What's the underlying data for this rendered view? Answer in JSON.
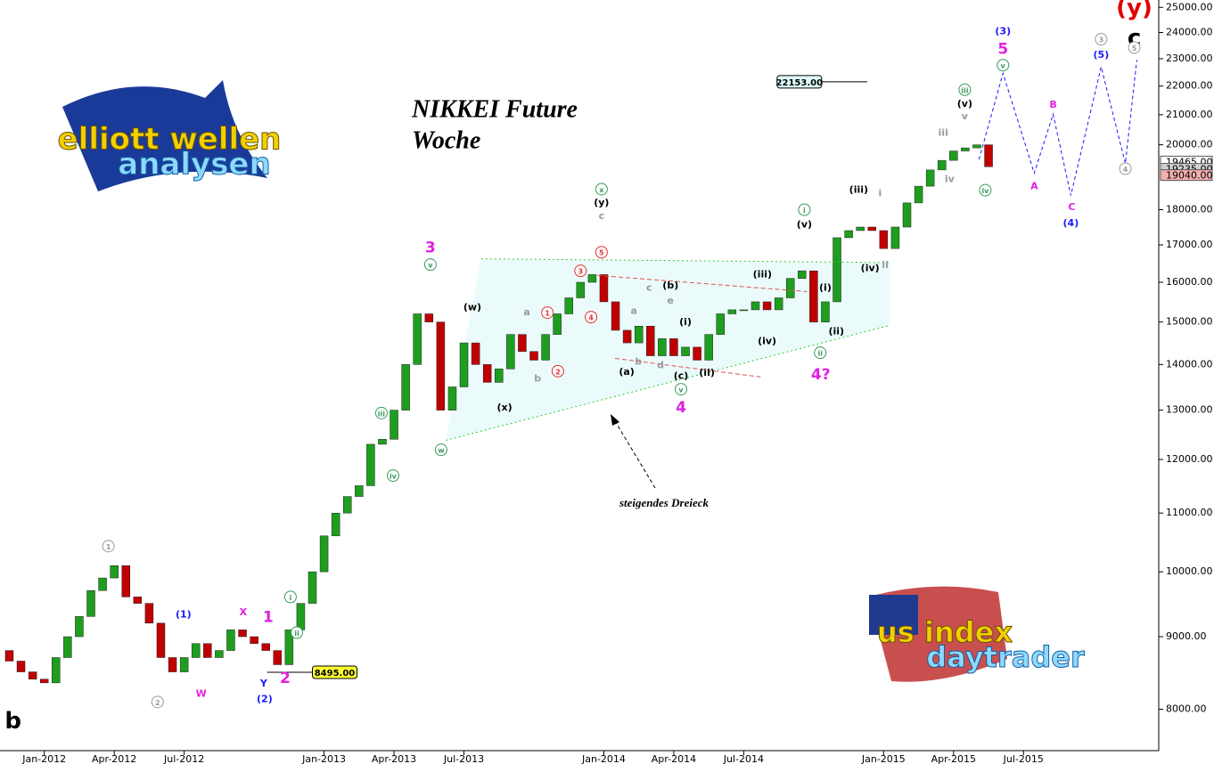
{
  "chart_data": {
    "type": "candlestick",
    "title": "NIKKEI Future",
    "subtitle": "Woche",
    "x": [
      -1.5,
      -1,
      -0.5,
      0,
      0.5,
      1,
      1.5,
      2,
      2.5,
      3,
      3.5,
      4,
      4.5,
      5,
      5.5,
      6,
      6.5,
      7,
      7.5,
      8,
      8.5,
      9,
      9.5,
      10,
      10.5,
      11,
      11.5,
      12,
      12.5,
      13,
      13.5,
      14,
      14.5,
      15,
      15.5,
      16,
      16.5,
      17,
      17.5,
      18,
      18.5,
      19,
      19.5,
      20,
      20.5,
      21,
      21.5,
      22,
      22.5,
      23,
      23.5,
      24,
      24.5,
      25,
      25.5,
      26,
      26.5,
      27,
      27.5,
      28,
      28.5,
      29,
      29.5,
      30,
      30.5,
      31,
      31.5,
      32,
      32.5,
      33,
      33.5,
      34,
      34.5,
      35,
      35.5,
      36,
      36.5,
      37,
      37.5,
      38,
      38.5,
      39,
      39.5,
      40,
      40.5
    ],
    "open": [
      8800,
      8650,
      8500,
      8400,
      8350,
      8700,
      9000,
      9300,
      9700,
      9900,
      10100,
      9600,
      9500,
      9200,
      8700,
      8500,
      8700,
      8900,
      8700,
      8800,
      9100,
      9000,
      8900,
      8800,
      8600,
      9100,
      9500,
      10000,
      10600,
      11000,
      11300,
      11500,
      12300,
      12400,
      13000,
      14000,
      15200,
      15000,
      13000,
      13500,
      14500,
      14000,
      13600,
      13900,
      14700,
      14300,
      14100,
      14700,
      15200,
      15600,
      16000,
      16200,
      15500,
      14800,
      14500,
      14900,
      14200,
      14600,
      14200,
      14400,
      14100,
      14700,
      15200,
      15300,
      15300,
      15500,
      15300,
      15600,
      16100,
      16300,
      15000,
      15500,
      17200,
      17400,
      17500,
      17400,
      16900,
      17500,
      18200,
      18700,
      19200,
      19500,
      19800,
      19900,
      20000
    ],
    "close": [
      8650,
      8500,
      8400,
      8350,
      8700,
      9000,
      9300,
      9700,
      9900,
      10100,
      9600,
      9500,
      9200,
      8700,
      8500,
      8700,
      8900,
      8700,
      8800,
      9100,
      9000,
      8900,
      8800,
      8600,
      9100,
      9500,
      10000,
      10600,
      11000,
      11300,
      11500,
      12300,
      12400,
      13000,
      14000,
      15200,
      15000,
      13000,
      13500,
      14500,
      14000,
      13600,
      13900,
      14700,
      14300,
      14100,
      14700,
      15200,
      15600,
      16000,
      16200,
      15500,
      14800,
      14500,
      14900,
      14200,
      14600,
      14200,
      14400,
      14100,
      14700,
      15200,
      15300,
      15300,
      15500,
      15300,
      15600,
      16100,
      16300,
      15000,
      15500,
      17200,
      17400,
      17500,
      17400,
      16900,
      17500,
      18200,
      18700,
      19200,
      19500,
      19800,
      19900,
      20000,
      19300
    ],
    "up_color": "#1e9e1e",
    "down_color": "#c00000",
    "xlim": [
      -1.9,
      47.8
    ],
    "ylim": [
      7480,
      25300
    ],
    "log_scale": true,
    "xticks": [
      {
        "value": 0,
        "label": "Jan-2012"
      },
      {
        "value": 3,
        "label": "Apr-2012"
      },
      {
        "value": 6,
        "label": "Jul-2012"
      },
      {
        "value": 12,
        "label": "Jan-2013"
      },
      {
        "value": 15,
        "label": "Apr-2013"
      },
      {
        "value": 18,
        "label": "Jul-2013"
      },
      {
        "value": 24,
        "label": "Jan-2014"
      },
      {
        "value": 27,
        "label": "Apr-2014"
      },
      {
        "value": 30,
        "label": "Jul-2014"
      },
      {
        "value": 36,
        "label": "Jan-2015"
      },
      {
        "value": 39,
        "label": "Apr-2015"
      },
      {
        "value": 42,
        "label": "Jul-2015"
      }
    ],
    "yticks": [
      {
        "value": 8000,
        "label": "8000.00"
      },
      {
        "value": 9000,
        "label": "9000.00"
      },
      {
        "value": 10000,
        "label": "10000.00"
      },
      {
        "value": 11000,
        "label": "11000.00"
      },
      {
        "value": 12000,
        "label": "12000.00"
      },
      {
        "value": 13000,
        "label": "13000.00"
      },
      {
        "value": 14000,
        "label": "14000.00"
      },
      {
        "value": 15000,
        "label": "15000.00"
      },
      {
        "value": 16000,
        "label": "16000.00"
      },
      {
        "value": 17000,
        "label": "17000.00"
      },
      {
        "value": 18000,
        "label": "18000.00"
      },
      {
        "value": 20000,
        "label": "20000.00"
      },
      {
        "value": 21000,
        "label": "21000.00"
      },
      {
        "value": 22000,
        "label": "22000.00"
      },
      {
        "value": 23000,
        "label": "23000.00"
      },
      {
        "value": 24000,
        "label": "24000.00"
      },
      {
        "value": 25000,
        "label": "25000.00"
      }
    ],
    "projection": {
      "color": "#1a1aff",
      "x": [
        40.09,
        41.12,
        42.46,
        43.27,
        44.03,
        45.33,
        46.37,
        46.86
      ],
      "values": [
        19530,
        22460,
        19100,
        21020,
        18420,
        22700,
        19400,
        22960
      ]
    },
    "trend_lines": [
      {
        "color": "#33cc33",
        "x": [
          18.74,
          36.27
        ],
        "values": [
          16620,
          16520
        ]
      },
      {
        "color": "#33cc33",
        "x": [
          17.22,
          36.27
        ],
        "values": [
          12380,
          14920
        ]
      },
      {
        "color": "#e05050",
        "x": [
          23.72,
          32.71
        ],
        "values": [
          16180,
          15760
        ]
      },
      {
        "color": "#e05050",
        "x": [
          24.48,
          30.72
        ],
        "values": [
          14140,
          13720
        ]
      }
    ],
    "triangle_fill": "#e6fafa",
    "levels": [
      {
        "value": 22153,
        "label": "22153.00",
        "x": [
          32.5,
          35.3
        ],
        "color": "#e0ffff"
      },
      {
        "value": 8495,
        "label": "8495.00",
        "x": [
          9.56,
          11.5
        ],
        "color": "#ffff33"
      }
    ],
    "price_tags": [
      {
        "value": 19465,
        "label": "19465.00",
        "color": "#ffffff"
      },
      {
        "value": 19235,
        "label": "19235.00",
        "color": "#d0d0d0"
      },
      {
        "value": 19040,
        "label": "19040.00",
        "color": "#f4b0b0"
      }
    ],
    "annotation": "steigendes Dreieck",
    "wave_labels": [
      {
        "text": "b",
        "x": -1.34,
        "y": 7850,
        "color": "#000000",
        "style": "big"
      },
      {
        "text": "1",
        "x": 2.75,
        "y": 10425,
        "color": "#999999",
        "circle": true
      },
      {
        "text": "2",
        "x": 4.86,
        "y": 8095,
        "color": "#999999",
        "circle": true
      },
      {
        "text": "(1)",
        "x": 5.97,
        "y": 9335,
        "color": "#1a1aff"
      },
      {
        "text": "W",
        "x": 6.73,
        "y": 8213,
        "color": "#e020e0"
      },
      {
        "text": "X",
        "x": 8.53,
        "y": 9370,
        "color": "#e020e0"
      },
      {
        "text": "1",
        "x": 9.6,
        "y": 9300,
        "color": "#e020e0",
        "style": "mid"
      },
      {
        "text": "Y",
        "x": 9.41,
        "y": 8350,
        "color": "#1a1aff"
      },
      {
        "text": "2",
        "x": 10.33,
        "y": 8420,
        "color": "#e020e0",
        "style": "mid"
      },
      {
        "text": "(2)",
        "x": 9.45,
        "y": 8140,
        "color": "#1a1aff"
      },
      {
        "text": "i",
        "x": 10.56,
        "y": 9600,
        "color": "#3a9a5a",
        "circle": true
      },
      {
        "text": "ii",
        "x": 10.83,
        "y": 9060,
        "color": "#3a9a5a",
        "circle": true
      },
      {
        "text": "iii",
        "x": 14.46,
        "y": 12940,
        "color": "#3a9a5a",
        "circle": true
      },
      {
        "text": "iv",
        "x": 14.96,
        "y": 11690,
        "color": "#3a9a5a",
        "circle": true
      },
      {
        "text": "3",
        "x": 16.56,
        "y": 16940,
        "color": "#e020e0",
        "style": "mid"
      },
      {
        "text": "v",
        "x": 16.56,
        "y": 16465,
        "color": "#3a9a5a",
        "circle": true
      },
      {
        "text": "w",
        "x": 17.02,
        "y": 12190,
        "color": "#3a9a5a",
        "circle": true
      },
      {
        "text": "(w)",
        "x": 18.36,
        "y": 15380,
        "color": "#000000"
      },
      {
        "text": "(x)",
        "x": 19.74,
        "y": 13070,
        "color": "#000000"
      },
      {
        "text": "x",
        "x": 23.9,
        "y": 18610,
        "color": "#3a9a5a",
        "circle": true
      },
      {
        "text": "(y)",
        "x": 23.9,
        "y": 18225,
        "color": "#000000"
      },
      {
        "text": "c",
        "x": 23.9,
        "y": 17830,
        "color": "#999999"
      },
      {
        "text": "5",
        "x": 23.9,
        "y": 16800,
        "color": "#e03030",
        "circle": true
      },
      {
        "text": "3",
        "x": 23.0,
        "y": 16300,
        "color": "#e03030",
        "circle": true
      },
      {
        "text": "4",
        "x": 23.45,
        "y": 15120,
        "color": "#e03030",
        "circle": true
      },
      {
        "text": "1",
        "x": 21.58,
        "y": 15230,
        "color": "#e03030",
        "circle": true
      },
      {
        "text": "2",
        "x": 22.03,
        "y": 13850,
        "color": "#e03030",
        "circle": true
      },
      {
        "text": "a",
        "x": 20.7,
        "y": 15250,
        "color": "#999999"
      },
      {
        "text": "b",
        "x": 21.16,
        "y": 13700,
        "color": "#999999"
      },
      {
        "text": "(a)",
        "x": 24.98,
        "y": 13850,
        "color": "#000000"
      },
      {
        "text": "(b)",
        "x": 26.86,
        "y": 15930,
        "color": "#000000"
      },
      {
        "text": "(c)",
        "x": 27.31,
        "y": 13760,
        "color": "#000000"
      },
      {
        "text": "a",
        "x": 25.29,
        "y": 15290,
        "color": "#999999"
      },
      {
        "text": "b",
        "x": 25.48,
        "y": 14080,
        "color": "#999999"
      },
      {
        "text": "c",
        "x": 25.94,
        "y": 15870,
        "color": "#999999"
      },
      {
        "text": "e",
        "x": 26.86,
        "y": 15540,
        "color": "#999999"
      },
      {
        "text": "d",
        "x": 26.43,
        "y": 14000,
        "color": "#999999"
      },
      {
        "text": "v",
        "x": 27.31,
        "y": 13450,
        "color": "#3a9a5a",
        "circle": true
      },
      {
        "text": "4",
        "x": 27.31,
        "y": 13070,
        "color": "#e020e0",
        "style": "mid"
      },
      {
        "text": "(i)",
        "x": 27.5,
        "y": 15010,
        "color": "#000000"
      },
      {
        "text": "(ii)",
        "x": 28.42,
        "y": 13830,
        "color": "#000000"
      },
      {
        "text": "(iii)",
        "x": 30.8,
        "y": 16220,
        "color": "#000000"
      },
      {
        "text": "(iv)",
        "x": 31.0,
        "y": 14550,
        "color": "#000000"
      },
      {
        "text": "(v)",
        "x": 32.6,
        "y": 17590,
        "color": "#000000"
      },
      {
        "text": "i",
        "x": 32.6,
        "y": 18000,
        "color": "#3a9a5a",
        "circle": true
      },
      {
        "text": "(i)",
        "x": 33.5,
        "y": 15870,
        "color": "#000000"
      },
      {
        "text": "(ii)",
        "x": 33.97,
        "y": 14790,
        "color": "#000000"
      },
      {
        "text": "ii",
        "x": 33.28,
        "y": 14270,
        "color": "#3a9a5a",
        "circle": true
      },
      {
        "text": "4?",
        "x": 33.3,
        "y": 13790,
        "color": "#e020e0",
        "style": "mid"
      },
      {
        "text": "(iii)",
        "x": 34.93,
        "y": 18610,
        "color": "#000000"
      },
      {
        "text": "i",
        "x": 35.85,
        "y": 18500,
        "color": "#999999"
      },
      {
        "text": "(iv)",
        "x": 35.42,
        "y": 16390,
        "color": "#000000"
      },
      {
        "text": "ii",
        "x": 36.07,
        "y": 16465,
        "color": "#999999"
      },
      {
        "text": "iii",
        "x": 38.56,
        "y": 20410,
        "color": "#999999"
      },
      {
        "text": "iv",
        "x": 38.83,
        "y": 18940,
        "color": "#999999"
      },
      {
        "text": "v",
        "x": 39.48,
        "y": 20960,
        "color": "#999999"
      },
      {
        "text": "(v)",
        "x": 39.48,
        "y": 21400,
        "color": "#000000"
      },
      {
        "text": "iii",
        "x": 39.48,
        "y": 21870,
        "color": "#3a9a5a",
        "circle": true
      },
      {
        "text": "iv",
        "x": 40.36,
        "y": 18580,
        "color": "#3a9a5a",
        "circle": true
      },
      {
        "text": "(y)",
        "x": 46.75,
        "y": 25000,
        "color": "#e00000",
        "style": "big"
      },
      {
        "text": "c",
        "x": 46.75,
        "y": 23800,
        "color": "#000000",
        "style": "big"
      },
      {
        "text": "(3)",
        "x": 41.12,
        "y": 24070,
        "color": "#1a1aff"
      },
      {
        "text": "5",
        "x": 41.12,
        "y": 23390,
        "color": "#e020e0",
        "style": "mid"
      },
      {
        "text": "v",
        "x": 41.12,
        "y": 22760,
        "color": "#3a9a5a",
        "circle": true
      },
      {
        "text": "A",
        "x": 42.46,
        "y": 18720,
        "color": "#e020e0"
      },
      {
        "text": "B",
        "x": 43.27,
        "y": 21370,
        "color": "#e020e0"
      },
      {
        "text": "C",
        "x": 44.07,
        "y": 18090,
        "color": "#e020e0"
      },
      {
        "text": "(4)",
        "x": 44.03,
        "y": 17630,
        "color": "#1a1aff"
      },
      {
        "text": "3",
        "x": 45.33,
        "y": 23740,
        "color": "#999999",
        "circle": true
      },
      {
        "text": "(5)",
        "x": 45.33,
        "y": 23160,
        "color": "#1a1aff"
      },
      {
        "text": "5",
        "x": 46.75,
        "y": 23420,
        "color": "#999999",
        "circle": true
      },
      {
        "text": "4",
        "x": 46.37,
        "y": 19240,
        "color": "#999999",
        "circle": true
      }
    ]
  },
  "logos": {
    "left": [
      "elliott wellen",
      "analysen"
    ],
    "right": [
      "us index",
      "daytrader"
    ]
  }
}
